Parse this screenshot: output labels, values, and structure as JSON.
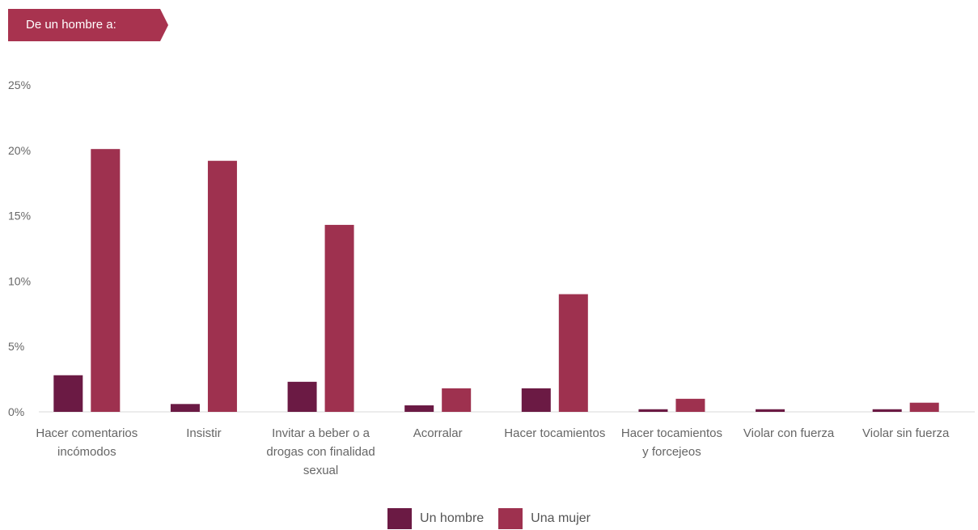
{
  "banner": {
    "label": "De un hombre a:",
    "color": "#a8334f"
  },
  "chart_data": {
    "type": "bar",
    "title": "",
    "xlabel": "",
    "ylabel": "",
    "ylim": [
      0,
      25
    ],
    "yticks": [
      0,
      5,
      10,
      15,
      20,
      25
    ],
    "ytick_labels": [
      "0%",
      "5%",
      "10%",
      "15%",
      "20%",
      "25%"
    ],
    "categories": [
      [
        "Hacer comentarios",
        "incómodos"
      ],
      [
        "Insistir"
      ],
      [
        "Invitar a beber o a",
        "drogas con finalidad",
        "sexual"
      ],
      [
        "Acorralar"
      ],
      [
        "Hacer tocamientos"
      ],
      [
        "Hacer tocamientos",
        "y forcejeos"
      ],
      [
        "Violar con fuerza"
      ],
      [
        "Violar sin fuerza"
      ]
    ],
    "series": [
      {
        "name": "Un hombre",
        "color": "#6b1a44",
        "values": [
          2.8,
          0.6,
          2.3,
          0.5,
          1.8,
          0.2,
          0.2,
          0.2
        ]
      },
      {
        "name": "Una mujer",
        "color": "#9e314f",
        "values": [
          20.1,
          19.2,
          14.3,
          1.8,
          9.0,
          1.0,
          0.0,
          0.7
        ]
      }
    ],
    "legend_position": "bottom-center",
    "grid": false
  }
}
